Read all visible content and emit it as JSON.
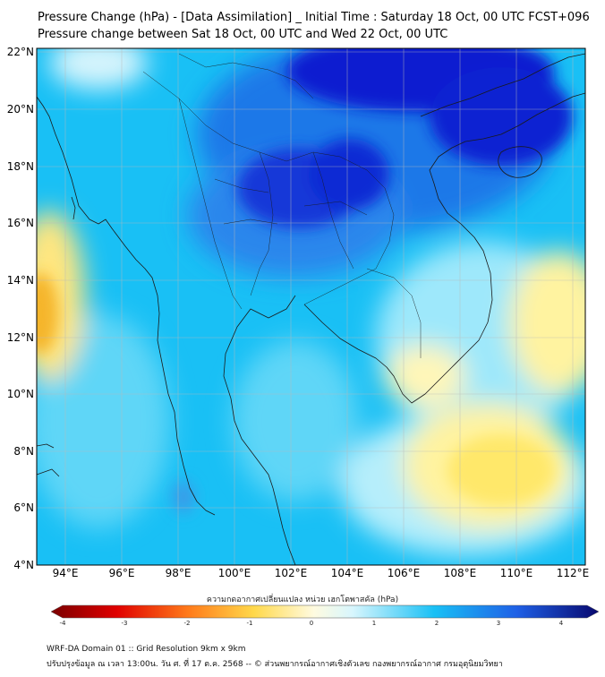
{
  "header": {
    "title_line1": "Pressure Change (hPa) - [Data Assimilation] _ Initial Time : Saturday 18 Oct, 00 UTC FCST+096",
    "title_line2": "Pressure change between Sat 18 Oct, 00 UTC and Wed 22 Oct, 00 UTC"
  },
  "map": {
    "lat_labels": [
      "22°N",
      "20°N",
      "18°N",
      "16°N",
      "14°N",
      "12°N",
      "10°N",
      "8°N",
      "6°N",
      "4°N"
    ],
    "lon_labels": [
      "94°E",
      "96°E",
      "98°E",
      "100°E",
      "102°E",
      "104°E",
      "106°E",
      "108°E",
      "110°E",
      "112°E"
    ],
    "gridlines": true,
    "colors": {
      "strong_fall": "#0a1fd0",
      "moderate_fall": "#1f78e8",
      "weak_fall": "#19c0f5",
      "slight_fall": "#9ee8fb",
      "neutral": "#e8f7fb",
      "slight_rise": "#fffab0",
      "weak_rise": "#ffe86a",
      "moderate_rise": "#f5b52a",
      "coastline": "#1a1a1a"
    }
  },
  "colorbar": {
    "label": "ความกดอากาศเปลี่ยนแปลง หน่วย เฮกโตพาสคัล (hPa)",
    "ticks": [
      "-4",
      "-3",
      "-2",
      "-1",
      "0",
      "1",
      "2",
      "3",
      "4"
    ],
    "range": [
      -4,
      4
    ],
    "extend": "both"
  },
  "footer": {
    "line1": "WRF-DA Domain 01 :: Grid Resolution 9km x 9km",
    "line2": "ปรับปรุงข้อมูล ณ เวลา 13:00น. วัน ศ. ที่ 17 ต.ค. 2568 -- © ส่วนพยากรณ์อากาศเชิงตัวเลข กองพยากรณ์อากาศ กรมอุตุนิยมวิทยา"
  }
}
